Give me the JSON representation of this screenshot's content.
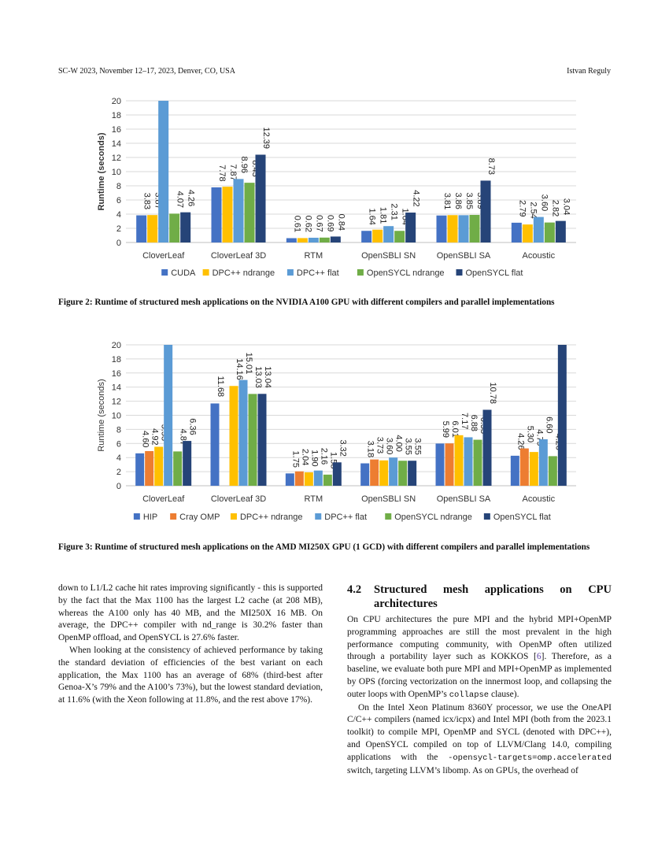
{
  "header": {
    "left": "SC-W 2023, November 12–17, 2023, Denver, CO, USA",
    "right": "Istvan Reguly"
  },
  "chart_data": [
    {
      "type": "bar",
      "title": "",
      "xlabel": "",
      "ylabel": "Runtime (seconds)",
      "ylim": [
        0,
        20
      ],
      "yticks": [
        0,
        2,
        4,
        6,
        8,
        10,
        12,
        14,
        16,
        18,
        20
      ],
      "grid": true,
      "legend_position": "bottom",
      "categories": [
        "CloverLeaf",
        "CloverLeaf 3D",
        "RTM",
        "OpenSBLI SN",
        "OpenSBLI SA",
        "Acoustic"
      ],
      "series": [
        {
          "name": "CUDA",
          "color": "#4472c4",
          "values": [
            3.83,
            7.78,
            0.61,
            1.64,
            3.81,
            2.79
          ],
          "labels": [
            "3.83",
            "7.78",
            "0.61",
            "1.64",
            "3.81",
            "2.79"
          ]
        },
        {
          "name": "DPC++ ndrange",
          "color": "#ffc000",
          "values": [
            3.87,
            7.87,
            0.62,
            1.81,
            3.86,
            2.54
          ],
          "labels": [
            "3.87",
            "7.87",
            "0.62",
            "1.81",
            "3.86",
            "2.54"
          ]
        },
        {
          "name": "DPC++ flat",
          "color": "#5b9bd5",
          "values": [
            20,
            8.96,
            0.67,
            2.31,
            3.85,
            3.6
          ],
          "labels": [
            "",
            "8.96",
            "0.67",
            "2.31",
            "3.85",
            "3.60"
          ]
        },
        {
          "name": "OpenSYCL ndrange",
          "color": "#70ad47",
          "values": [
            4.07,
            8.43,
            0.69,
            1.64,
            3.89,
            2.82
          ],
          "labels": [
            "4.07",
            "8.43",
            "0.69",
            "1.64",
            "3.89",
            "2.82"
          ]
        },
        {
          "name": "OpenSYCL flat",
          "color": "#264478",
          "values": [
            4.26,
            12.39,
            0.84,
            4.22,
            8.73,
            3.04
          ],
          "labels": [
            "4.26",
            "12.39",
            "0.84",
            "4.22",
            "8.73",
            "3.04"
          ]
        }
      ]
    },
    {
      "type": "bar",
      "title": "",
      "xlabel": "",
      "ylabel": "Runtime (seconds)",
      "ylim": [
        0,
        20
      ],
      "yticks": [
        0,
        2,
        4,
        6,
        8,
        10,
        12,
        14,
        16,
        18,
        20
      ],
      "grid": true,
      "legend_position": "bottom",
      "categories": [
        "CloverLeaf",
        "CloverLeaf 3D",
        "RTM",
        "OpenSBLI SN",
        "OpenSBLI SA",
        "Acoustic"
      ],
      "series": [
        {
          "name": "HIP",
          "color": "#4472c4",
          "values": [
            4.6,
            11.68,
            1.75,
            3.18,
            5.99,
            4.26
          ],
          "labels": [
            "4.60",
            "11.68",
            "1.75",
            "3.18",
            "5.99",
            "4.26"
          ]
        },
        {
          "name": "Cray OMP",
          "color": "#ed7d31",
          "values": [
            4.92,
            0,
            2.04,
            3.73,
            6.01,
            5.3
          ],
          "labels": [
            "4.92",
            "",
            "2.04",
            "3.73",
            "6.01",
            "5.30"
          ]
        },
        {
          "name": "DPC++ ndrange",
          "color": "#ffc000",
          "values": [
            5.53,
            14.16,
            1.9,
            3.6,
            7.17,
            4.79
          ],
          "labels": [
            "5.53",
            "14.16",
            "1.90",
            "3.60",
            "7.17",
            "4.79"
          ]
        },
        {
          "name": "DPC++ flat",
          "color": "#5b9bd5",
          "values": [
            20,
            15.01,
            2.16,
            4.0,
            6.88,
            6.6
          ],
          "labels": [
            "",
            "15.01",
            "2.16",
            "4.00",
            "6.88",
            "6.60"
          ]
        },
        {
          "name": "OpenSYCL ndrange",
          "color": "#70ad47",
          "values": [
            4.87,
            13.03,
            1.58,
            3.55,
            6.53,
            4.2
          ],
          "labels": [
            "4.87",
            "13.03",
            "1.58",
            "3.55",
            "6.53",
            "4.20"
          ]
        },
        {
          "name": "OpenSYCL flat",
          "color": "#264478",
          "values": [
            6.36,
            13.04,
            3.32,
            3.55,
            10.78,
            20
          ],
          "labels": [
            "6.36",
            "13.04",
            "3.32",
            "3.55",
            "10.78",
            ""
          ]
        }
      ]
    }
  ],
  "captions": {
    "fig2": "Figure 2: Runtime of structured mesh applications on the NVIDIA A100 GPU with different compilers and parallel implementations",
    "fig3": "Figure 3: Runtime of structured mesh applications on the AMD MI250X GPU (1 GCD) with different compilers and parallel implementations"
  },
  "left_column": {
    "p1": "down to L1/L2 cache hit rates improving significantly - this is supported by the fact that the Max 1100 has the largest L2 cache (at 208 MB), whereas the A100 only has 40 MB, and the MI250X 16 MB. On average, the DPC++ compiler with nd_range is 30.2% faster than OpenMP offload, and OpenSYCL is 27.6% faster.",
    "p2": "When looking at the consistency of achieved performance by taking the standard deviation of efficiencies of the best variant on each application, the Max 1100 has an average of 68% (third-best after Genoa-X’s 79% and the A100’s 73%), but the lowest standard deviation, at 11.6% (with the Xeon following at 11.8%, and the rest above 17%)."
  },
  "section": {
    "number": "4.2",
    "title": "Structured mesh applications on CPU architectures"
  },
  "right_column": {
    "p1_a": "On CPU architectures the pure MPI and the hybrid MPI+OpenMP programming approaches are still the most prevalent in the high performance computing community, with OpenMP often utilized through a portability layer such as KOKKOS [",
    "p1_ref": "6",
    "p1_b": "]. Therefore, as a baseline, we evaluate both pure MPI and MPI+OpenMP as implemented by OPS (forcing vectorization on the innermost loop, and collapsing the outer loops with OpenMP’s ",
    "p1_code": "collapse",
    "p1_c": " clause).",
    "p2_a": "On the Intel Xeon Platinum 8360Y processor, we use the OneAPI C/C++ compilers (named icx/icpx) and Intel MPI (both from the 2023.1 toolkit) to compile MPI, OpenMP and SYCL (denoted with DPC++), and OpenSYCL compiled on top of LLVM/Clang 14.0, compiling applications with the ",
    "p2_code": "-opensycl-targets=omp.accelerated",
    "p2_b": " switch, targeting LLVM’s libomp. As on GPUs, the overhead of"
  }
}
